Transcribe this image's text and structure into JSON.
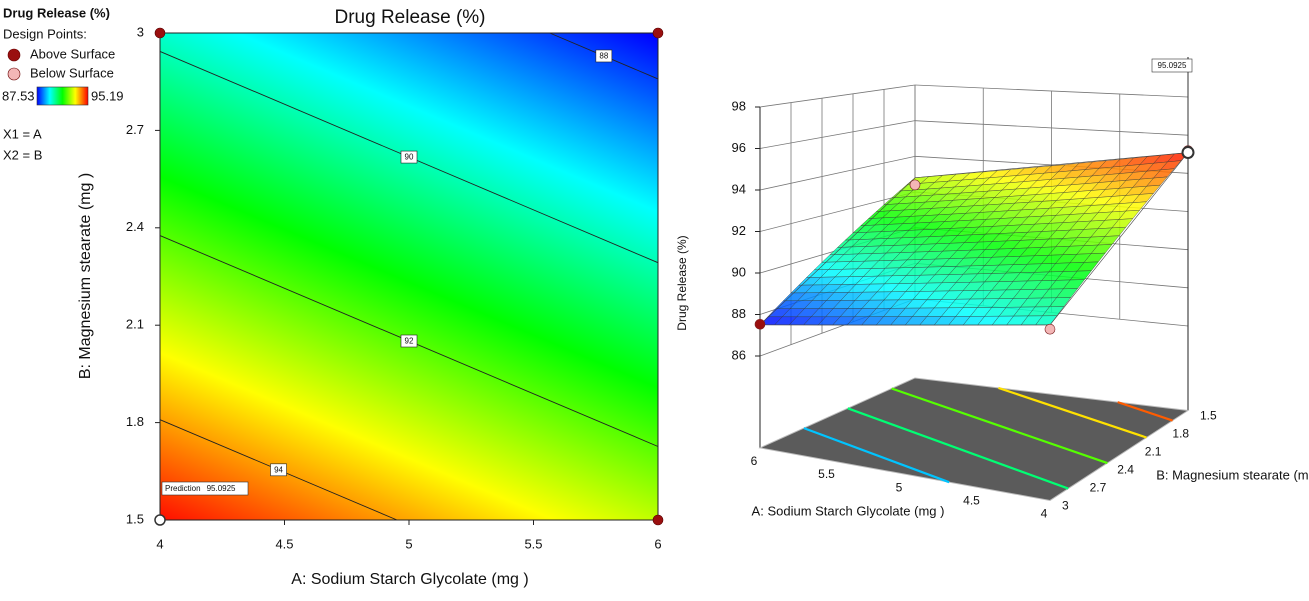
{
  "legend": {
    "title": "Drug Release (%)",
    "design_points": "Design Points:",
    "items": [
      {
        "label": "Above Surface",
        "color": "#9a0f0f"
      },
      {
        "label": "Below Surface",
        "color": "#f3b6b6"
      }
    ],
    "color_min": 87.53,
    "color_max": 95.19,
    "colormap": [
      "#0000ff",
      "#00ffff",
      "#00ff00",
      "#ffff00",
      "#ff0000"
    ],
    "factors": [
      "X1 = A",
      "X2 = B"
    ]
  },
  "model": {
    "x": [
      4,
      6
    ],
    "y": [
      1.5,
      3
    ],
    "z": [
      [
        95.09,
        89.8
      ],
      [
        92.8,
        87.5
      ]
    ]
  },
  "design_points": {
    "x": [
      4,
      6,
      6,
      4
    ],
    "y": [
      1.5,
      3,
      1.5,
      3
    ],
    "values": [
      95.19,
      87.53,
      92.4,
      89.6
    ],
    "kind": [
      0,
      0,
      1,
      1
    ]
  },
  "prediction": {
    "label": "Prediction",
    "value": 95.0925,
    "x": 4,
    "y": 1.5
  },
  "chart_data": [
    {
      "type": "contour",
      "title": "Drug Release (%)",
      "xlabel": "A: Sodium Starch Glycolate (mg )",
      "ylabel": "B: Magnesium stearate (mg )",
      "xlim": [
        4,
        6
      ],
      "xticks": [
        4,
        4.5,
        5,
        5.5,
        6
      ],
      "ylim": [
        1.5,
        3
      ],
      "yticks": [
        1.5,
        1.8,
        2.1,
        2.4,
        2.7,
        3
      ],
      "levels": [
        88,
        90,
        92,
        94
      ]
    },
    {
      "type": "surface3d",
      "xlabel": "A: Sodium Starch Glycolate (mg )",
      "ylabel": "B: Magnesium stearate (mg )",
      "zlabel": "Drug Release (%)",
      "xlim": [
        4,
        6
      ],
      "xticks": [
        6,
        5.5,
        5,
        4.5,
        4
      ],
      "ylim": [
        1.5,
        3
      ],
      "yticks": [
        1.5,
        1.8,
        2.1,
        2.4,
        2.7,
        3
      ],
      "zlim": [
        86,
        98
      ],
      "zticks": [
        86,
        88,
        90,
        92,
        94,
        96,
        98
      ],
      "floor_levels": [
        89,
        90.5,
        92,
        93.5,
        94.5
      ]
    }
  ]
}
